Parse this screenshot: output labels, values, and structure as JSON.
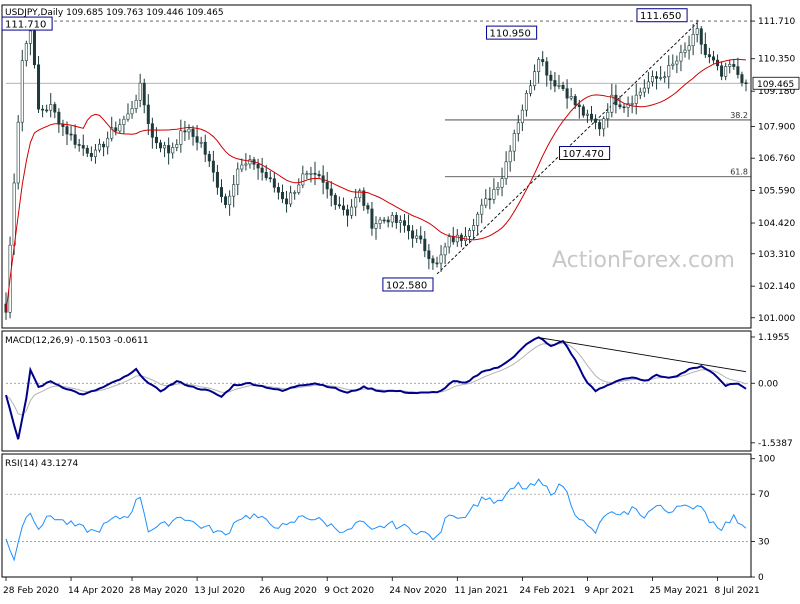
{
  "chart_data": {
    "type": "candlestick",
    "symbol_line": "USDJPY,Daily  109.685 109.763 109.446 109.465",
    "current_price": 109.465,
    "current_price_label": "109.465",
    "watermark": "ActionForex.com",
    "main_panel": {
      "ylim": [
        100.63,
        112.29
      ],
      "y_ticks": [
        "111.710",
        "110.350",
        "109.180",
        "107.900",
        "106.760",
        "105.590",
        "104.420",
        "103.310",
        "102.140",
        "101.000"
      ],
      "y_tick_values": [
        111.71,
        110.35,
        109.18,
        107.9,
        106.76,
        105.59,
        104.42,
        103.31,
        102.14,
        101.0
      ],
      "resistance_level": 111.71,
      "fib_levels": [
        {
          "label": "38.2",
          "value": 108.14
        },
        {
          "label": "61.8",
          "value": 106.09
        }
      ],
      "annotations": [
        {
          "label": "111.710",
          "index": 6,
          "value": 111.71
        },
        {
          "label": "110.950",
          "index": 131,
          "value": 110.95
        },
        {
          "label": "111.650",
          "index": 168,
          "value": 111.65
        },
        {
          "label": "107.470",
          "index": 146,
          "value": 107.47
        },
        {
          "label": "102.580",
          "index": 106,
          "value": 102.58
        }
      ],
      "trendlines": [
        {
          "from": {
            "index": 106,
            "value": 102.58
          },
          "to": {
            "index": 170,
            "value": 111.65
          }
        }
      ]
    },
    "macd_panel": {
      "title": "MACD(12,26,9) -0.1503 -0.0611",
      "ylim": [
        -1.75,
        1.35
      ],
      "y_ticks": [
        "1.1955",
        "0.00",
        "-1.5387"
      ],
      "y_tick_values": [
        1.1955,
        0.0,
        -1.5387
      ],
      "trendline": {
        "from": {
          "index": 131,
          "value": 1.18
        },
        "to": {
          "index": 182,
          "value": 0.3
        }
      }
    },
    "rsi_panel": {
      "title": "RSI(14) 43.1274",
      "ylim": [
        0,
        104
      ],
      "y_ticks": [
        "100",
        "70",
        "30",
        "0"
      ],
      "y_tick_values": [
        100,
        70,
        30,
        0
      ],
      "levels": [
        70,
        30
      ]
    },
    "x_labels": [
      {
        "label": "28 Feb 2020",
        "index": 0
      },
      {
        "label": "14 Apr 2020",
        "index": 16
      },
      {
        "label": "28 May 2020",
        "index": 31
      },
      {
        "label": "13 Jul 2020",
        "index": 47
      },
      {
        "label": "26 Aug 2020",
        "index": 63
      },
      {
        "label": "9 Oct 2020",
        "index": 79
      },
      {
        "label": "24 Nov 2020",
        "index": 95
      },
      {
        "label": "11 Jan 2021",
        "index": 111
      },
      {
        "label": "24 Feb 2021",
        "index": 127
      },
      {
        "label": "9 Apr 2021",
        "index": 143
      },
      {
        "label": "25 May 2021",
        "index": 159
      },
      {
        "label": "8 Jul 2021",
        "index": 175
      }
    ],
    "keypoints": [
      {
        "i": 0,
        "c": 101.2
      },
      {
        "i": 2,
        "c": 106.0
      },
      {
        "i": 4,
        "c": 110.3
      },
      {
        "i": 6,
        "c": 111.5
      },
      {
        "i": 8,
        "c": 108.5
      },
      {
        "i": 11,
        "c": 108.6
      },
      {
        "i": 14,
        "c": 107.9
      },
      {
        "i": 18,
        "c": 107.2
      },
      {
        "i": 22,
        "c": 106.9
      },
      {
        "i": 26,
        "c": 107.7
      },
      {
        "i": 30,
        "c": 108.3
      },
      {
        "i": 33,
        "c": 109.3
      },
      {
        "i": 36,
        "c": 107.5
      },
      {
        "i": 40,
        "c": 107.0
      },
      {
        "i": 44,
        "c": 107.8
      },
      {
        "i": 48,
        "c": 107.3
      },
      {
        "i": 51,
        "c": 106.2
      },
      {
        "i": 54,
        "c": 105.1
      },
      {
        "i": 57,
        "c": 106.4
      },
      {
        "i": 61,
        "c": 106.6
      },
      {
        "i": 65,
        "c": 105.9
      },
      {
        "i": 69,
        "c": 105.2
      },
      {
        "i": 73,
        "c": 106.1
      },
      {
        "i": 77,
        "c": 106.0
      },
      {
        "i": 80,
        "c": 105.4
      },
      {
        "i": 84,
        "c": 104.8
      },
      {
        "i": 87,
        "c": 105.5
      },
      {
        "i": 90,
        "c": 104.4
      },
      {
        "i": 94,
        "c": 104.6
      },
      {
        "i": 98,
        "c": 104.3
      },
      {
        "i": 102,
        "c": 103.7
      },
      {
        "i": 106,
        "c": 102.9
      },
      {
        "i": 109,
        "c": 103.8
      },
      {
        "i": 112,
        "c": 103.9
      },
      {
        "i": 115,
        "c": 104.5
      },
      {
        "i": 119,
        "c": 105.4
      },
      {
        "i": 122,
        "c": 106.1
      },
      {
        "i": 125,
        "c": 107.7
      },
      {
        "i": 128,
        "c": 109.0
      },
      {
        "i": 131,
        "c": 110.5
      },
      {
        "i": 134,
        "c": 109.6
      },
      {
        "i": 137,
        "c": 109.3
      },
      {
        "i": 140,
        "c": 108.7
      },
      {
        "i": 143,
        "c": 108.2
      },
      {
        "i": 146,
        "c": 107.9
      },
      {
        "i": 149,
        "c": 108.9
      },
      {
        "i": 152,
        "c": 108.7
      },
      {
        "i": 155,
        "c": 109.0
      },
      {
        "i": 158,
        "c": 109.5
      },
      {
        "i": 161,
        "c": 109.7
      },
      {
        "i": 164,
        "c": 110.1
      },
      {
        "i": 167,
        "c": 110.6
      },
      {
        "i": 170,
        "c": 111.3
      },
      {
        "i": 172,
        "c": 110.5
      },
      {
        "i": 174,
        "c": 110.2
      },
      {
        "i": 176,
        "c": 109.7
      },
      {
        "i": 178,
        "c": 110.1
      },
      {
        "i": 180,
        "c": 109.8
      },
      {
        "i": 182,
        "c": 109.47
      }
    ],
    "macd_keypoints": [
      {
        "i": 0,
        "v": -0.3
      },
      {
        "i": 3,
        "v": -1.45
      },
      {
        "i": 5,
        "v": -0.4
      },
      {
        "i": 6,
        "v": 0.35
      },
      {
        "i": 8,
        "v": -0.1
      },
      {
        "i": 11,
        "v": 0.05
      },
      {
        "i": 14,
        "v": -0.1
      },
      {
        "i": 19,
        "v": -0.3
      },
      {
        "i": 24,
        "v": -0.1
      },
      {
        "i": 30,
        "v": 0.2
      },
      {
        "i": 32,
        "v": 0.35
      },
      {
        "i": 35,
        "v": 0.0
      },
      {
        "i": 38,
        "v": -0.2
      },
      {
        "i": 42,
        "v": 0.05
      },
      {
        "i": 46,
        "v": -0.1
      },
      {
        "i": 50,
        "v": -0.2
      },
      {
        "i": 53,
        "v": -0.35
      },
      {
        "i": 56,
        "v": -0.05
      },
      {
        "i": 60,
        "v": 0.0
      },
      {
        "i": 64,
        "v": -0.1
      },
      {
        "i": 68,
        "v": -0.2
      },
      {
        "i": 72,
        "v": -0.05
      },
      {
        "i": 76,
        "v": 0.0
      },
      {
        "i": 80,
        "v": -0.1
      },
      {
        "i": 84,
        "v": -0.25
      },
      {
        "i": 88,
        "v": -0.1
      },
      {
        "i": 92,
        "v": -0.2
      },
      {
        "i": 96,
        "v": -0.2
      },
      {
        "i": 100,
        "v": -0.25
      },
      {
        "i": 104,
        "v": -0.25
      },
      {
        "i": 107,
        "v": -0.2
      },
      {
        "i": 110,
        "v": 0.05
      },
      {
        "i": 113,
        "v": 0.0
      },
      {
        "i": 117,
        "v": 0.3
      },
      {
        "i": 121,
        "v": 0.4
      },
      {
        "i": 125,
        "v": 0.7
      },
      {
        "i": 128,
        "v": 1.0
      },
      {
        "i": 131,
        "v": 1.2
      },
      {
        "i": 134,
        "v": 0.95
      },
      {
        "i": 137,
        "v": 1.1
      },
      {
        "i": 140,
        "v": 0.6
      },
      {
        "i": 143,
        "v": 0.0
      },
      {
        "i": 145,
        "v": -0.2
      },
      {
        "i": 148,
        "v": -0.05
      },
      {
        "i": 151,
        "v": 0.1
      },
      {
        "i": 154,
        "v": 0.15
      },
      {
        "i": 157,
        "v": 0.05
      },
      {
        "i": 160,
        "v": 0.2
      },
      {
        "i": 164,
        "v": 0.15
      },
      {
        "i": 168,
        "v": 0.35
      },
      {
        "i": 171,
        "v": 0.45
      },
      {
        "i": 174,
        "v": 0.25
      },
      {
        "i": 177,
        "v": -0.05
      },
      {
        "i": 180,
        "v": 0.0
      },
      {
        "i": 182,
        "v": -0.15
      }
    ],
    "rsi_keypoints": [
      {
        "i": 0,
        "v": 32
      },
      {
        "i": 2,
        "v": 16
      },
      {
        "i": 4,
        "v": 44
      },
      {
        "i": 6,
        "v": 56
      },
      {
        "i": 8,
        "v": 42
      },
      {
        "i": 11,
        "v": 52
      },
      {
        "i": 14,
        "v": 47
      },
      {
        "i": 18,
        "v": 42
      },
      {
        "i": 22,
        "v": 38
      },
      {
        "i": 26,
        "v": 48
      },
      {
        "i": 30,
        "v": 52
      },
      {
        "i": 33,
        "v": 69
      },
      {
        "i": 35,
        "v": 40
      },
      {
        "i": 39,
        "v": 44
      },
      {
        "i": 43,
        "v": 52
      },
      {
        "i": 47,
        "v": 44
      },
      {
        "i": 51,
        "v": 40
      },
      {
        "i": 54,
        "v": 35
      },
      {
        "i": 57,
        "v": 50
      },
      {
        "i": 61,
        "v": 52
      },
      {
        "i": 65,
        "v": 45
      },
      {
        "i": 69,
        "v": 42
      },
      {
        "i": 73,
        "v": 52
      },
      {
        "i": 77,
        "v": 48
      },
      {
        "i": 81,
        "v": 42
      },
      {
        "i": 84,
        "v": 38
      },
      {
        "i": 87,
        "v": 47
      },
      {
        "i": 90,
        "v": 38
      },
      {
        "i": 94,
        "v": 45
      },
      {
        "i": 98,
        "v": 42
      },
      {
        "i": 102,
        "v": 38
      },
      {
        "i": 106,
        "v": 32
      },
      {
        "i": 109,
        "v": 55
      },
      {
        "i": 112,
        "v": 50
      },
      {
        "i": 115,
        "v": 60
      },
      {
        "i": 118,
        "v": 68
      },
      {
        "i": 121,
        "v": 62
      },
      {
        "i": 124,
        "v": 72
      },
      {
        "i": 126,
        "v": 78
      },
      {
        "i": 128,
        "v": 74
      },
      {
        "i": 131,
        "v": 80
      },
      {
        "i": 134,
        "v": 72
      },
      {
        "i": 137,
        "v": 78
      },
      {
        "i": 140,
        "v": 55
      },
      {
        "i": 143,
        "v": 42
      },
      {
        "i": 145,
        "v": 38
      },
      {
        "i": 148,
        "v": 55
      },
      {
        "i": 151,
        "v": 50
      },
      {
        "i": 154,
        "v": 58
      },
      {
        "i": 157,
        "v": 52
      },
      {
        "i": 160,
        "v": 60
      },
      {
        "i": 163,
        "v": 55
      },
      {
        "i": 166,
        "v": 63
      },
      {
        "i": 169,
        "v": 55
      },
      {
        "i": 171,
        "v": 62
      },
      {
        "i": 173,
        "v": 48
      },
      {
        "i": 176,
        "v": 42
      },
      {
        "i": 179,
        "v": 50
      },
      {
        "i": 182,
        "v": 43
      }
    ],
    "colors": {
      "candle": "#1f3a3a",
      "ma": "#d00000",
      "macd": "#00008b",
      "signal": "#b4b4b4",
      "rsi": "#1e90ff",
      "label_bg": "#ffffff",
      "label_border": "#00008b",
      "grid_line": "#000000"
    }
  }
}
